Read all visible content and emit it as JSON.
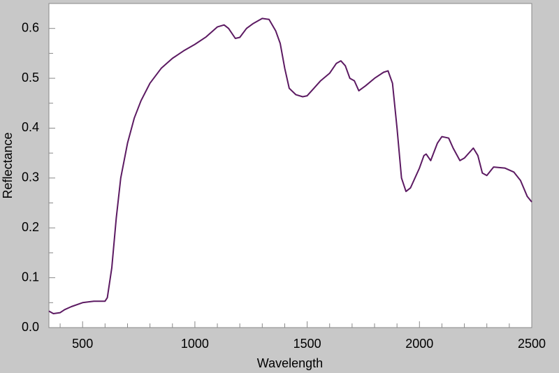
{
  "chart_data": {
    "type": "line",
    "xlabel": "Wavelength",
    "ylabel": "Reflectance",
    "xlim": [
      350,
      2500
    ],
    "ylim": [
      0,
      0.65
    ],
    "xticks": [
      500,
      1000,
      1500,
      2000,
      2500
    ],
    "yticks": [
      {
        "value": 0,
        "label": "0.0"
      },
      0.1,
      0.2,
      0.3,
      0.4,
      0.5,
      0.6
    ],
    "xminorticks": [
      400,
      600,
      700,
      800,
      900,
      1100,
      1200,
      1300,
      1400,
      1600,
      1700,
      1800,
      1900,
      2100,
      2200,
      2300,
      2400
    ],
    "yminorticks": [
      0.05,
      0.15,
      0.25,
      0.35,
      0.45,
      0.55
    ],
    "series": [
      {
        "color": "#5c1a62",
        "x": [
          350,
          370,
          400,
          420,
          450,
          500,
          550,
          600,
          610,
          630,
          650,
          670,
          700,
          730,
          760,
          800,
          850,
          900,
          950,
          1000,
          1050,
          1100,
          1130,
          1150,
          1180,
          1200,
          1230,
          1260,
          1300,
          1330,
          1360,
          1380,
          1400,
          1420,
          1450,
          1480,
          1500,
          1530,
          1560,
          1600,
          1630,
          1650,
          1670,
          1690,
          1710,
          1730,
          1760,
          1800,
          1840,
          1860,
          1880,
          1900,
          1920,
          1940,
          1960,
          2000,
          2020,
          2030,
          2050,
          2080,
          2100,
          2130,
          2150,
          2180,
          2200,
          2240,
          2260,
          2280,
          2300,
          2330,
          2380,
          2420,
          2450,
          2480,
          2500
        ],
        "values": [
          0.033,
          0.028,
          0.03,
          0.036,
          0.042,
          0.05,
          0.053,
          0.053,
          0.06,
          0.12,
          0.22,
          0.3,
          0.37,
          0.42,
          0.455,
          0.49,
          0.52,
          0.54,
          0.555,
          0.568,
          0.583,
          0.603,
          0.607,
          0.6,
          0.58,
          0.582,
          0.6,
          0.61,
          0.62,
          0.618,
          0.595,
          0.57,
          0.52,
          0.48,
          0.467,
          0.463,
          0.465,
          0.48,
          0.495,
          0.51,
          0.53,
          0.535,
          0.525,
          0.5,
          0.495,
          0.475,
          0.485,
          0.5,
          0.512,
          0.515,
          0.49,
          0.4,
          0.3,
          0.273,
          0.28,
          0.32,
          0.345,
          0.348,
          0.335,
          0.37,
          0.383,
          0.38,
          0.36,
          0.335,
          0.34,
          0.36,
          0.345,
          0.31,
          0.305,
          0.322,
          0.32,
          0.312,
          0.295,
          0.263,
          0.252
        ]
      }
    ]
  }
}
